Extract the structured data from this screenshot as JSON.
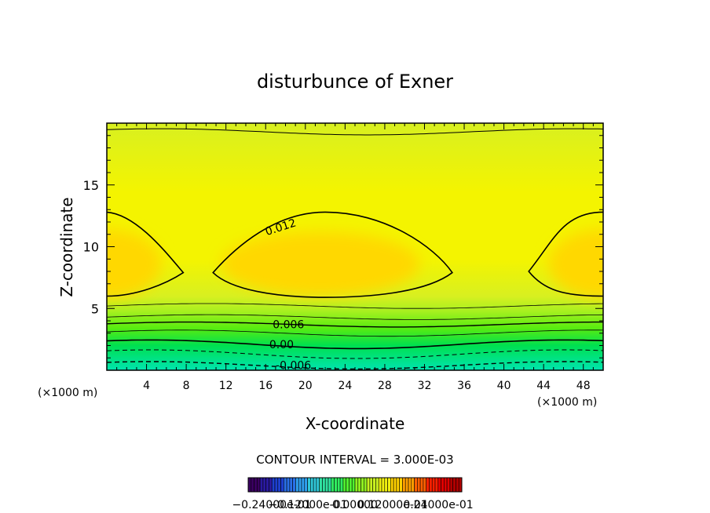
{
  "chart_data": {
    "type": "contour",
    "title": "disturbunce of Exner",
    "xlabel": "X-coordinate",
    "ylabel": "Z-coordinate",
    "x_unit": "(×1000 m)",
    "z_unit": "(×1000 m)",
    "xlim": [
      0,
      50
    ],
    "ylim": [
      0,
      20
    ],
    "xticks": [
      4,
      8,
      12,
      16,
      20,
      24,
      28,
      32,
      36,
      40,
      44,
      48
    ],
    "yticks": [
      5,
      10,
      15
    ],
    "contour_interval_text": "CONTOUR INTERVAL = 3.000E-03",
    "contour_labels": [
      {
        "text": "0.012",
        "x": 17.5,
        "z": 11.6,
        "rotate": -18
      },
      {
        "text": "0.006",
        "x": 18.3,
        "z": 3.7,
        "rotate": 0
      },
      {
        "text": "0.00",
        "x": 17.6,
        "z": 2.1,
        "rotate": 0
      },
      {
        "text": "-0.006",
        "x": 18.8,
        "z": 0.4,
        "rotate": 0
      }
    ],
    "colorbar": {
      "tick_text": "−0.24000e-01",
      "tick_text_mid": "−0.12000e-01",
      "tick_text_2": "0.00000",
      "tick_text_3": "0.12000e-01",
      "tick_text_4": "0.24000e-01",
      "colors": [
        "#3a0060",
        "#2a1aa0",
        "#1e40d0",
        "#2a70e8",
        "#30a0f0",
        "#30c8d8",
        "#30e0a0",
        "#30ec60",
        "#50f030",
        "#90f020",
        "#c8f020",
        "#f0f010",
        "#ffd000",
        "#ffa000",
        "#ff6000",
        "#ff2000",
        "#e00000",
        "#b00000"
      ]
    },
    "fill_colors": {
      "high": "#ffd800",
      "upper": "#f4f400",
      "top": "#d8f020",
      "mid": "#a8f020",
      "low": "#58ec10",
      "lower": "#00e050",
      "bottom": "#00e4b0"
    }
  }
}
